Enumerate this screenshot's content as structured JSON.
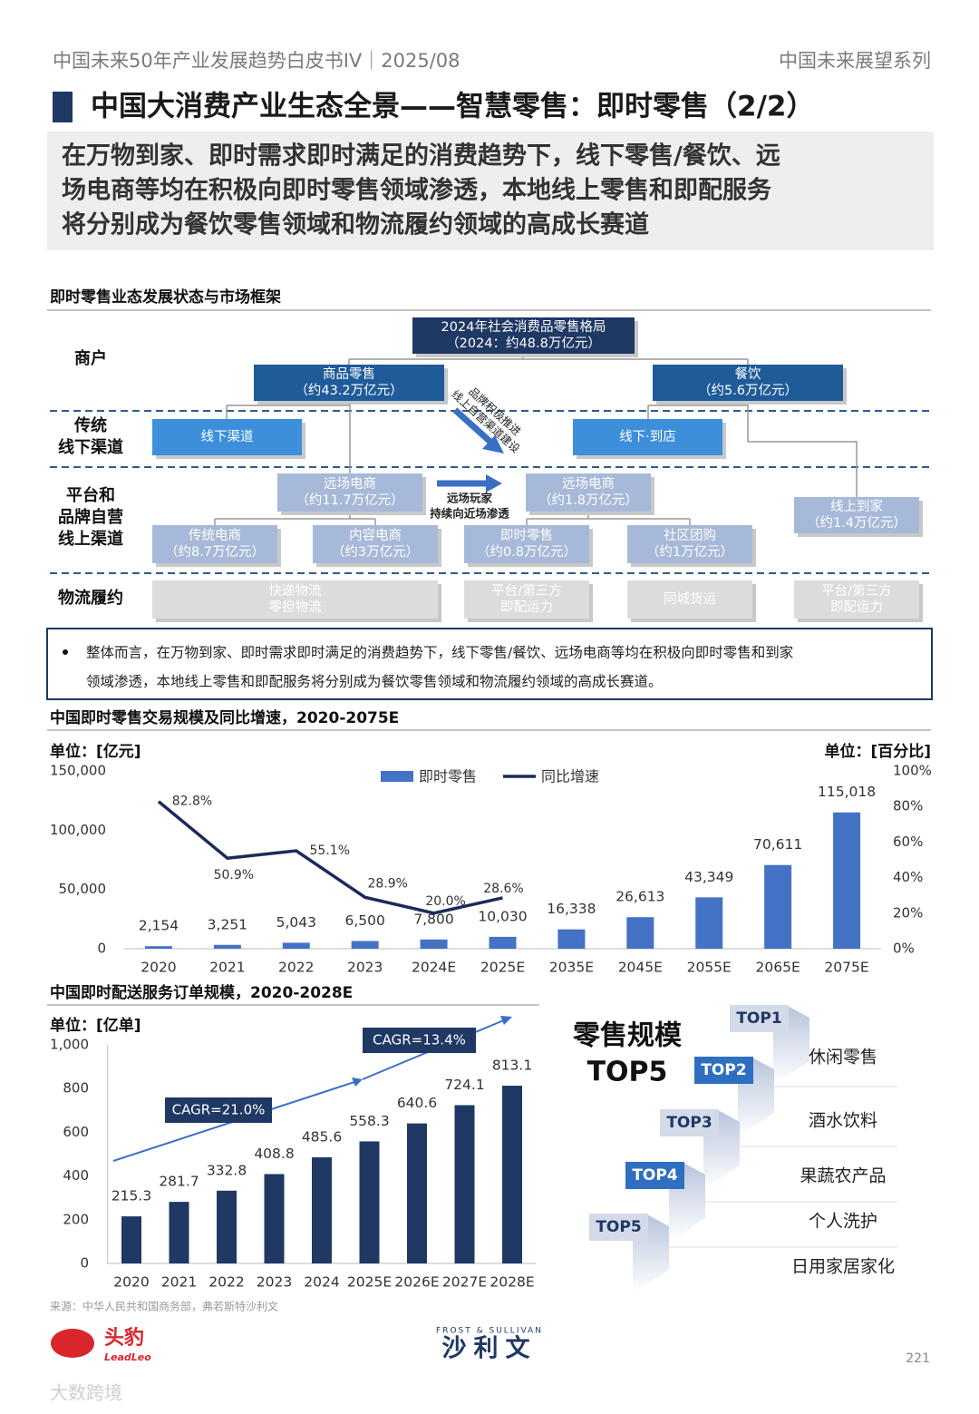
{
  "header": {
    "left": "中国未来50年产业发展趋势白皮书IV｜2025/08",
    "right": "中国未来展望系列"
  },
  "title": "中国大消费产业生态全景——智慧零售：即时零售（2/2）",
  "summary": [
    "在万物到家、即时需求即时满足的消费趋势下，线下零售/餐饮、远",
    "场电商等均在积极向即时零售领域渗透，本地线上零售和即配服务",
    "将分别成为餐饮零售领域和物流履约领域的高成长赛道"
  ],
  "framework": {
    "title": "即时零售业态发展状态与市场框架",
    "rows": [
      [
        "商户"
      ],
      [
        "传统",
        "线下渠道"
      ],
      [
        "平台和",
        "品牌自营",
        "线上渠道"
      ],
      [
        "物流履约"
      ]
    ],
    "nodes": [
      [
        "2024年社会消费品零售格局",
        "（2024：约48.8万亿元）"
      ],
      [
        "商品零售",
        "（约43.2万亿元）"
      ],
      [
        "餐饮",
        "（约5.6万亿元）"
      ],
      [
        "线下渠道"
      ],
      [
        "线下·到店"
      ],
      [
        "远场电商",
        "（约11.7万亿元）"
      ],
      [
        "远场电商",
        "（约1.8万亿元）"
      ],
      [
        "线上到家",
        "（约1.4万亿元）"
      ],
      [
        "传统电商",
        "（约8.7万亿元）"
      ],
      [
        "内容电商",
        "（约3万亿元）"
      ],
      [
        "即时零售",
        "（约0.8万亿元）"
      ],
      [
        "社区团购",
        "（约1万亿元）"
      ],
      [
        "快递物流",
        "零担物流"
      ],
      [
        "平台/第三方",
        "即配运力"
      ],
      [
        "同城货运"
      ],
      [
        "平台/第三方",
        "即配运力"
      ]
    ],
    "arrow_labels": [
      [
        "品牌积极推进",
        "线上自营渠道建设"
      ],
      [
        "远场玩家",
        "持续向近场渗透"
      ]
    ]
  },
  "note": [
    "整体而言，在万物到家、即时需求即时满足的消费趋势下，线下零售/餐饮、远场电商等均在积极向即时零售和到家",
    "领域渗透，本地线上零售和即配服务将分别成为餐饮零售领域和物流履约领域的高成长赛道。"
  ],
  "chart_data": [
    {
      "type": "bar",
      "title": "中国即时零售交易规模及同比增速，2020-2075E",
      "y_unit": "单位：[亿元]",
      "y2_unit": "单位：[百分比]",
      "categories": [
        "2020",
        "2021",
        "2022",
        "2023",
        "2024E",
        "2025E",
        "2035E",
        "2045E",
        "2055E",
        "2065E",
        "2075E"
      ],
      "series": [
        {
          "name": "即时零售",
          "type": "bar",
          "color": "#4472c4",
          "values": [
            2154,
            3251,
            5043,
            6500,
            7800,
            10030,
            16338,
            26613,
            43349,
            70611,
            115018
          ],
          "value_labels": [
            "2,154",
            "3,251",
            "5,043",
            "6,500",
            "7,800",
            "10,030",
            "16,338",
            "26,613",
            "43,349",
            "70,611",
            "115,018"
          ]
        },
        {
          "name": "同比增速",
          "type": "line",
          "axis": "y2",
          "color": "#1c2a5a",
          "values": [
            82.8,
            50.9,
            55.1,
            28.9,
            20.0,
            28.6,
            null,
            null,
            null,
            null,
            null
          ],
          "value_labels": [
            "82.8%",
            "50.9%",
            "55.1%",
            "28.9%",
            "20.0%",
            "28.6%",
            null,
            null,
            null,
            null,
            null
          ]
        }
      ],
      "ylim": [
        0,
        150000
      ],
      "yticks": [
        0,
        {
          "value": 50000,
          "label": "50,000"
        },
        {
          "value": 100000,
          "label": "100,000"
        },
        {
          "value": 150000,
          "label": "150,000"
        }
      ],
      "y2lim": [
        0,
        100
      ],
      "y2ticks": [
        {
          "value": 0,
          "label": "0%"
        },
        {
          "value": 20,
          "label": "20%"
        },
        {
          "value": 40,
          "label": "40%"
        },
        {
          "value": 60,
          "label": "60%"
        },
        {
          "value": 80,
          "label": "80%"
        },
        {
          "value": 100,
          "label": "100%"
        }
      ],
      "legend": "top"
    },
    {
      "type": "bar",
      "title": "中国即时配送服务订单规模，2020-2028E",
      "y_unit": "单位：[亿单]",
      "categories": [
        "2020",
        "2021",
        "2022",
        "2023",
        "2024",
        "2025E",
        "2026E",
        "2027E",
        "2028E"
      ],
      "values": [
        215.3,
        281.7,
        332.8,
        408.8,
        485.6,
        558.3,
        640.6,
        724.1,
        813.1
      ],
      "color": "#1f3864",
      "ylim": [
        0,
        1000
      ],
      "yticks": [
        0,
        200,
        400,
        600,
        800,
        {
          "value": 1000,
          "label": "1,000"
        }
      ],
      "annotations": [
        "CAGR=21.0%",
        "CAGR=13.4%"
      ]
    }
  ],
  "top5": {
    "title": [
      "零售规模",
      "TOP5"
    ],
    "items": [
      {
        "rank": "TOP1",
        "label": "休闲零售"
      },
      {
        "rank": "TOP2",
        "label": "酒水饮料"
      },
      {
        "rank": "TOP3",
        "label": "果蔬农产品"
      },
      {
        "rank": "TOP4",
        "label": "个人洗护"
      },
      {
        "rank": "TOP5",
        "label": "日用家居家化"
      }
    ]
  },
  "source": "来源：中华人民共和国商务部，弗若斯特沙利文",
  "footer": {
    "logo_left": "头豹",
    "logo_left_sub": "LeadLeo",
    "logo_center_sub": "FROST & SULLIVAN",
    "logo_center": "沙利文",
    "page": "221",
    "watermark": "大数跨境"
  }
}
